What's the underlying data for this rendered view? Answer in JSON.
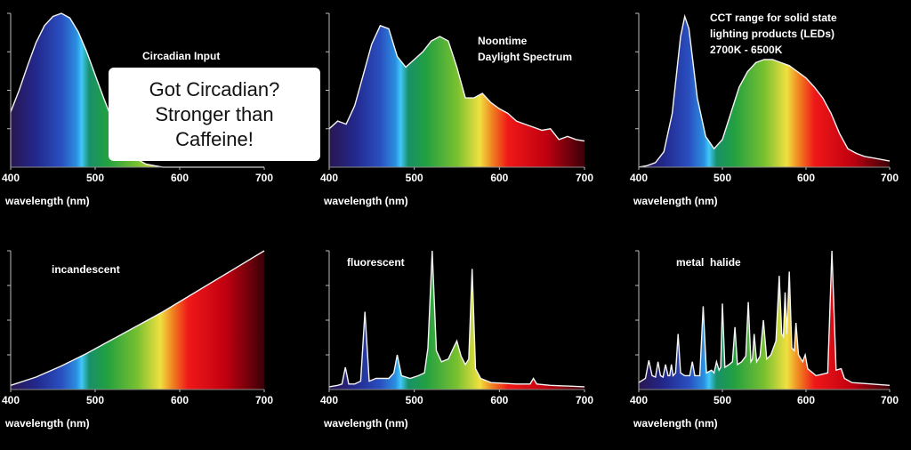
{
  "chart_data": [
    {
      "type": "area",
      "title": [
        "Circadian Input"
      ],
      "xlabel": "wavelength (nm)",
      "xlim": [
        400,
        700
      ],
      "xticks": [
        400,
        500,
        600,
        700
      ],
      "ylim": [
        0,
        100
      ],
      "x": [
        400,
        410,
        420,
        430,
        440,
        450,
        460,
        470,
        480,
        490,
        500,
        510,
        520,
        530,
        540,
        550,
        560,
        570,
        580,
        590,
        600,
        610,
        620,
        630,
        640,
        650,
        660,
        670,
        680,
        690,
        700
      ],
      "values": [
        36,
        50,
        66,
        81,
        92,
        98,
        100,
        97,
        88,
        75,
        60,
        45,
        31,
        19,
        10,
        5,
        2,
        1,
        0,
        0,
        0,
        0,
        0,
        0,
        0,
        0,
        0,
        0,
        0,
        0,
        0
      ]
    },
    {
      "type": "area",
      "title": [
        "Noontime",
        "Daylight Spectrum"
      ],
      "xlabel": "wavelength (nm)",
      "xlim": [
        400,
        700
      ],
      "xticks": [
        400,
        500,
        600,
        700
      ],
      "ylim": [
        0,
        100
      ],
      "x": [
        400,
        410,
        420,
        430,
        440,
        450,
        460,
        470,
        480,
        490,
        500,
        510,
        520,
        530,
        540,
        550,
        560,
        570,
        580,
        590,
        600,
        610,
        620,
        630,
        640,
        650,
        660,
        670,
        680,
        690,
        700
      ],
      "values": [
        25,
        30,
        28,
        40,
        60,
        80,
        92,
        90,
        72,
        65,
        70,
        75,
        82,
        85,
        82,
        65,
        45,
        45,
        48,
        42,
        38,
        35,
        30,
        28,
        26,
        24,
        25,
        18,
        20,
        18,
        17
      ]
    },
    {
      "type": "area",
      "title": [
        "CCT range for solid state",
        "lighting products (LEDs)",
        "2700K - 6500K"
      ],
      "xlabel": "wavelength (nm)",
      "xlim": [
        400,
        700
      ],
      "xticks": [
        400,
        500,
        600,
        700
      ],
      "ylim": [
        0,
        100
      ],
      "x": [
        400,
        410,
        420,
        430,
        440,
        450,
        455,
        460,
        470,
        480,
        490,
        500,
        510,
        520,
        530,
        540,
        550,
        560,
        570,
        580,
        590,
        600,
        610,
        620,
        630,
        640,
        650,
        660,
        670,
        680,
        690,
        700
      ],
      "values": [
        0,
        1,
        3,
        10,
        35,
        85,
        98,
        90,
        45,
        20,
        12,
        18,
        35,
        52,
        62,
        68,
        70,
        70,
        68,
        66,
        62,
        58,
        52,
        45,
        35,
        22,
        12,
        9,
        7,
        6,
        5,
        4
      ]
    },
    {
      "type": "area",
      "title": [
        "incandescent"
      ],
      "xlabel": "wavelength (nm)",
      "xlim": [
        400,
        700
      ],
      "xticks": [
        400,
        500,
        600,
        700
      ],
      "ylim": [
        0,
        100
      ],
      "x": [
        400,
        430,
        460,
        490,
        520,
        550,
        580,
        610,
        640,
        670,
        700
      ],
      "values": [
        3,
        9,
        17,
        26,
        36,
        46,
        56,
        67,
        78,
        89,
        100
      ]
    },
    {
      "type": "area",
      "title": [
        "fluorescent"
      ],
      "xlabel": "wavelength (nm)",
      "xlim": [
        400,
        700
      ],
      "xticks": [
        400,
        500,
        600,
        700
      ],
      "ylim": [
        0,
        100
      ],
      "x": [
        400,
        410,
        415,
        419,
        423,
        430,
        437,
        442,
        447,
        455,
        470,
        476,
        480,
        485,
        495,
        505,
        512,
        516,
        521,
        526,
        532,
        540,
        546,
        550,
        555,
        560,
        564,
        568,
        572,
        578,
        590,
        620,
        636,
        640,
        644,
        660,
        700
      ],
      "values": [
        2,
        3,
        4,
        16,
        4,
        4,
        6,
        56,
        6,
        8,
        8,
        12,
        25,
        10,
        8,
        10,
        12,
        30,
        100,
        28,
        20,
        22,
        30,
        35,
        24,
        18,
        22,
        87,
        15,
        8,
        5,
        4,
        4,
        8,
        4,
        3,
        2
      ]
    },
    {
      "type": "area",
      "title": [
        "metal  halide"
      ],
      "xlabel": "wavelength (nm)",
      "xlim": [
        400,
        700
      ],
      "xticks": [
        400,
        500,
        600,
        700
      ],
      "ylim": [
        0,
        100
      ],
      "x": [
        400,
        408,
        412,
        416,
        420,
        423,
        426,
        429,
        432,
        435,
        437,
        439,
        441,
        444,
        447,
        450,
        455,
        461,
        464,
        467,
        473,
        477,
        481,
        487,
        490,
        493,
        496,
        498,
        500,
        503,
        508,
        512,
        515,
        518,
        523,
        528,
        531,
        534,
        536,
        538,
        541,
        545,
        549,
        553,
        558,
        564,
        568,
        571,
        573,
        575,
        577,
        580,
        583,
        586,
        588,
        591,
        596,
        599,
        602,
        612,
        626,
        631,
        636,
        642,
        646,
        655,
        700
      ],
      "values": [
        5,
        8,
        21,
        10,
        9,
        20,
        10,
        9,
        18,
        10,
        10,
        18,
        10,
        12,
        40,
        12,
        10,
        10,
        20,
        10,
        10,
        60,
        12,
        14,
        12,
        20,
        14,
        16,
        62,
        16,
        18,
        20,
        45,
        18,
        20,
        24,
        63,
        20,
        22,
        40,
        20,
        24,
        50,
        22,
        25,
        35,
        82,
        40,
        38,
        70,
        40,
        85,
        30,
        28,
        48,
        25,
        20,
        25,
        15,
        10,
        12,
        100,
        14,
        15,
        8,
        5,
        3
      ]
    }
  ],
  "overlay": {
    "lines": [
      "Got Circadian?",
      "Stronger than",
      "Caffeine!"
    ]
  }
}
